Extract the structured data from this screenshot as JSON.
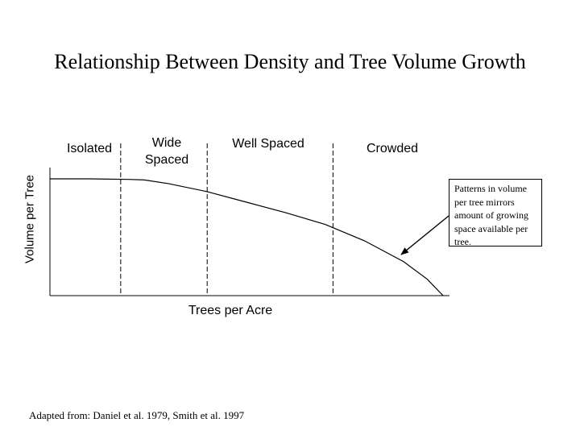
{
  "chart_data": {
    "type": "line",
    "title": "Relationship Between Density and Tree Volume Growth",
    "xlabel": "Trees per Acre",
    "ylabel": "Volume per Tree",
    "xlim": [
      0,
      100
    ],
    "ylim": [
      0,
      100
    ],
    "zones": [
      "Isolated",
      "Wide Spaced",
      "Well Spaced",
      "Crowded"
    ],
    "zone_boundaries": [
      18,
      40,
      72
    ],
    "series": [
      {
        "x": [
          0,
          10,
          20,
          24,
          30,
          40,
          50,
          60,
          70,
          80,
          90,
          96,
          100
        ],
        "y": [
          100,
          100,
          99.5,
          99,
          96,
          89,
          80,
          71,
          61,
          47,
          29,
          14,
          0
        ]
      }
    ],
    "annotation": "Patterns in volume per tree mirrors amount of growing space available per tree.",
    "source": "Adapted from: Daniel et al. 1979, Smith et al. 1997"
  }
}
